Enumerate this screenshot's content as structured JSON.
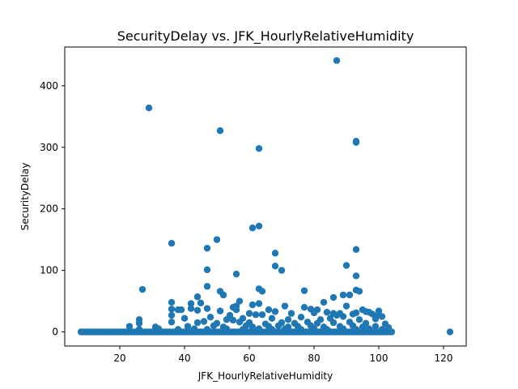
{
  "chart_data": {
    "type": "scatter",
    "title": "SecurityDelay vs. JFK_HourlyRelativeHumidity",
    "xlabel": "JFK_HourlyRelativeHumidity",
    "ylabel": "SecurityDelay",
    "xlim": [
      3,
      127
    ],
    "ylim": [
      -23,
      463
    ],
    "xticks": [
      20,
      40,
      60,
      80,
      100,
      120
    ],
    "yticks": [
      0,
      100,
      200,
      300,
      400
    ],
    "grid": false,
    "marker_color": "#1f77b4",
    "points": [
      {
        "x": 87,
        "y": 441
      },
      {
        "x": 29,
        "y": 364
      },
      {
        "x": 51,
        "y": 327
      },
      {
        "x": 63,
        "y": 298
      },
      {
        "x": 93,
        "y": 310
      },
      {
        "x": 93,
        "y": 308
      },
      {
        "x": 63,
        "y": 172
      },
      {
        "x": 61,
        "y": 169
      },
      {
        "x": 50,
        "y": 150
      },
      {
        "x": 36,
        "y": 144
      },
      {
        "x": 47,
        "y": 136
      },
      {
        "x": 93,
        "y": 134
      },
      {
        "x": 68,
        "y": 128
      },
      {
        "x": 90,
        "y": 108
      },
      {
        "x": 68,
        "y": 107
      },
      {
        "x": 47,
        "y": 101
      },
      {
        "x": 70,
        "y": 100
      },
      {
        "x": 56,
        "y": 94
      },
      {
        "x": 93,
        "y": 91
      },
      {
        "x": 47,
        "y": 74
      },
      {
        "x": 27,
        "y": 69
      },
      {
        "x": 63,
        "y": 70
      },
      {
        "x": 64,
        "y": 66
      },
      {
        "x": 77,
        "y": 67
      },
      {
        "x": 51,
        "y": 66
      },
      {
        "x": 93,
        "y": 68
      },
      {
        "x": 94,
        "y": 66
      },
      {
        "x": 52,
        "y": 60
      },
      {
        "x": 89,
        "y": 60
      },
      {
        "x": 91,
        "y": 60
      },
      {
        "x": 44,
        "y": 57
      },
      {
        "x": 86,
        "y": 56
      },
      {
        "x": 57,
        "y": 50
      },
      {
        "x": 36,
        "y": 48
      },
      {
        "x": 42,
        "y": 46
      },
      {
        "x": 45,
        "y": 47
      },
      {
        "x": 61,
        "y": 44
      },
      {
        "x": 63,
        "y": 46
      },
      {
        "x": 83,
        "y": 48
      },
      {
        "x": 56,
        "y": 42
      },
      {
        "x": 71,
        "y": 42
      },
      {
        "x": 77,
        "y": 40
      },
      {
        "x": 90,
        "y": 42
      },
      {
        "x": 36,
        "y": 37
      },
      {
        "x": 38,
        "y": 36
      },
      {
        "x": 39,
        "y": 36
      },
      {
        "x": 42,
        "y": 38
      },
      {
        "x": 44,
        "y": 35
      },
      {
        "x": 47,
        "y": 38
      },
      {
        "x": 55,
        "y": 40
      },
      {
        "x": 56,
        "y": 36
      },
      {
        "x": 66,
        "y": 36
      },
      {
        "x": 68,
        "y": 33
      },
      {
        "x": 73,
        "y": 30
      },
      {
        "x": 79,
        "y": 37
      },
      {
        "x": 81,
        "y": 36
      },
      {
        "x": 84,
        "y": 32
      },
      {
        "x": 86,
        "y": 30
      },
      {
        "x": 93,
        "y": 31
      },
      {
        "x": 95,
        "y": 36
      },
      {
        "x": 96,
        "y": 33
      },
      {
        "x": 97,
        "y": 32
      },
      {
        "x": 100,
        "y": 34
      },
      {
        "x": 51,
        "y": 34
      },
      {
        "x": 60,
        "y": 30
      },
      {
        "x": 62,
        "y": 28
      },
      {
        "x": 64,
        "y": 28
      },
      {
        "x": 36,
        "y": 27
      },
      {
        "x": 54,
        "y": 27
      },
      {
        "x": 76,
        "y": 24
      },
      {
        "x": 80,
        "y": 31
      },
      {
        "x": 87,
        "y": 27
      },
      {
        "x": 88,
        "y": 30
      },
      {
        "x": 92,
        "y": 29
      },
      {
        "x": 98,
        "y": 29
      },
      {
        "x": 100,
        "y": 28
      },
      {
        "x": 101,
        "y": 25
      },
      {
        "x": 26,
        "y": 20
      },
      {
        "x": 40,
        "y": 22
      },
      {
        "x": 48,
        "y": 24
      },
      {
        "x": 53,
        "y": 20
      },
      {
        "x": 55,
        "y": 19
      },
      {
        "x": 58,
        "y": 22
      },
      {
        "x": 67,
        "y": 22
      },
      {
        "x": 72,
        "y": 20
      },
      {
        "x": 82,
        "y": 20
      },
      {
        "x": 85,
        "y": 22
      },
      {
        "x": 89,
        "y": 25
      },
      {
        "x": 94,
        "y": 20
      },
      {
        "x": 99,
        "y": 21
      },
      {
        "x": 26,
        "y": 14
      },
      {
        "x": 36,
        "y": 16
      },
      {
        "x": 44,
        "y": 15
      },
      {
        "x": 46,
        "y": 17
      },
      {
        "x": 50,
        "y": 14
      },
      {
        "x": 57,
        "y": 16
      },
      {
        "x": 60,
        "y": 15
      },
      {
        "x": 65,
        "y": 13
      },
      {
        "x": 70,
        "y": 15
      },
      {
        "x": 74,
        "y": 14
      },
      {
        "x": 78,
        "y": 16
      },
      {
        "x": 81,
        "y": 14
      },
      {
        "x": 86,
        "y": 15
      },
      {
        "x": 91,
        "y": 16
      },
      {
        "x": 96,
        "y": 14
      },
      {
        "x": 102,
        "y": 13
      },
      {
        "x": 23,
        "y": 9
      },
      {
        "x": 31,
        "y": 8
      },
      {
        "x": 41,
        "y": 9
      },
      {
        "x": 49,
        "y": 10
      },
      {
        "x": 52,
        "y": 8
      },
      {
        "x": 59,
        "y": 10
      },
      {
        "x": 61,
        "y": 8
      },
      {
        "x": 66,
        "y": 9
      },
      {
        "x": 69,
        "y": 10
      },
      {
        "x": 72,
        "y": 8
      },
      {
        "x": 75,
        "y": 9
      },
      {
        "x": 79,
        "y": 10
      },
      {
        "x": 83,
        "y": 8
      },
      {
        "x": 88,
        "y": 9
      },
      {
        "x": 92,
        "y": 10
      },
      {
        "x": 95,
        "y": 8
      },
      {
        "x": 99,
        "y": 9
      },
      {
        "x": 103,
        "y": 7
      },
      {
        "x": 26,
        "y": 4
      },
      {
        "x": 32,
        "y": 5
      },
      {
        "x": 38,
        "y": 4
      },
      {
        "x": 43,
        "y": 5
      },
      {
        "x": 47,
        "y": 4
      },
      {
        "x": 53,
        "y": 5
      },
      {
        "x": 58,
        "y": 4
      },
      {
        "x": 63,
        "y": 5
      },
      {
        "x": 67,
        "y": 4
      },
      {
        "x": 71,
        "y": 5
      },
      {
        "x": 76,
        "y": 4
      },
      {
        "x": 80,
        "y": 5
      },
      {
        "x": 84,
        "y": 4
      },
      {
        "x": 89,
        "y": 5
      },
      {
        "x": 93,
        "y": 4
      },
      {
        "x": 97,
        "y": 5
      },
      {
        "x": 101,
        "y": 4
      },
      {
        "x": 122,
        "y": 0
      }
    ],
    "baseline_band": {
      "y": 0,
      "x_from": 8,
      "x_to": 104
    }
  }
}
